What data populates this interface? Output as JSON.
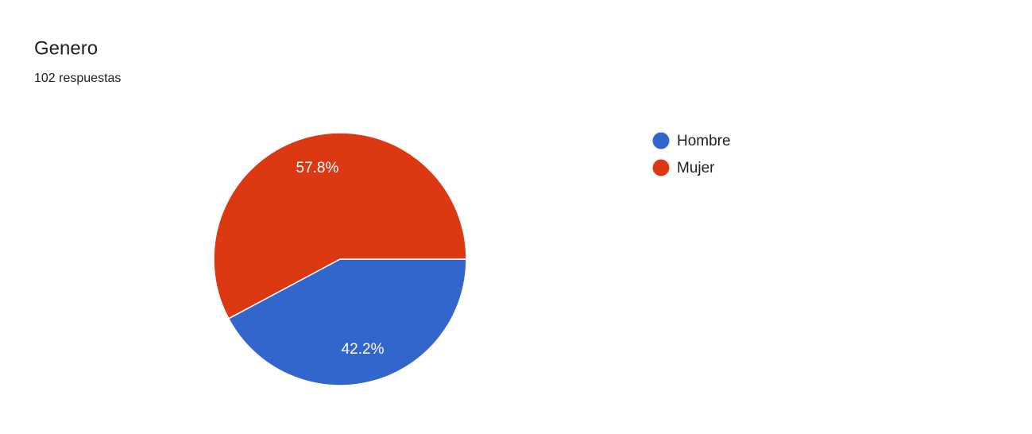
{
  "chart_data": {
    "type": "pie",
    "title": "Genero",
    "subtitle": "102 respuestas",
    "categories": [
      "Hombre",
      "Mujer"
    ],
    "values": [
      42.2,
      57.8
    ],
    "value_labels": [
      "42.2%",
      "57.8%"
    ],
    "colors": [
      "#3366cc",
      "#dc3912"
    ],
    "legend": "right"
  }
}
